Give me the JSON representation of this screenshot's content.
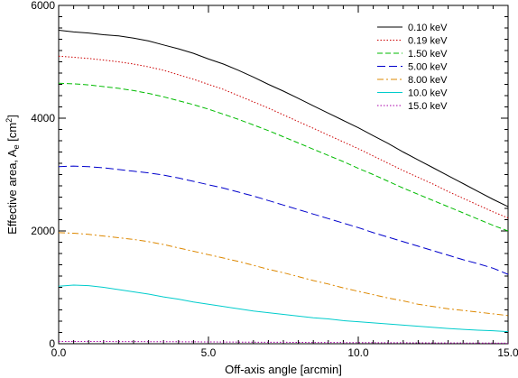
{
  "chart_data": {
    "type": "line",
    "xlabel": "Off-axis angle [arcmin]",
    "ylabel": "Effective area, A",
    "ylabel_sub": "e",
    "ylabel_unit_prefix": " [cm",
    "ylabel_unit_sup": "2",
    "ylabel_unit_suffix": "]",
    "xlim": [
      0,
      15
    ],
    "ylim": [
      0,
      6000
    ],
    "xticks": [
      0,
      5,
      10,
      15
    ],
    "xtick_labels": [
      "0.0",
      "5.0",
      "10.0",
      "15.0"
    ],
    "yticks": [
      0,
      2000,
      4000,
      6000
    ],
    "ytick_labels": [
      "0",
      "2000",
      "4000",
      "6000"
    ],
    "grid": false,
    "legend_position": "top-right",
    "x": [
      0,
      0.5,
      1,
      1.5,
      2,
      2.5,
      3,
      3.5,
      4,
      4.5,
      5,
      5.5,
      6,
      6.5,
      7,
      7.5,
      8,
      8.5,
      9,
      9.5,
      10,
      10.5,
      11,
      11.5,
      12,
      12.5,
      13,
      13.5,
      14,
      14.5,
      15
    ],
    "series": [
      {
        "name": "0.10 keV",
        "color": "#000000",
        "dash": "",
        "values": [
          5560,
          5530,
          5510,
          5480,
          5460,
          5420,
          5370,
          5300,
          5230,
          5150,
          5050,
          4960,
          4850,
          4730,
          4600,
          4480,
          4350,
          4220,
          4090,
          3960,
          3830,
          3690,
          3550,
          3400,
          3260,
          3120,
          2980,
          2840,
          2700,
          2560,
          2430
        ]
      },
      {
        "name": "0.19 keV",
        "color": "#cc0000",
        "dash": "1.5,2",
        "values": [
          5100,
          5080,
          5060,
          5030,
          5000,
          4960,
          4910,
          4850,
          4770,
          4690,
          4600,
          4510,
          4400,
          4290,
          4180,
          4060,
          3940,
          3820,
          3700,
          3580,
          3460,
          3330,
          3200,
          3070,
          2950,
          2830,
          2700,
          2580,
          2460,
          2340,
          2230
        ]
      },
      {
        "name": "1.50 keV",
        "color": "#00bb00",
        "dash": "6,3",
        "values": [
          4620,
          4610,
          4590,
          4560,
          4530,
          4490,
          4440,
          4380,
          4310,
          4240,
          4160,
          4070,
          3980,
          3880,
          3780,
          3670,
          3560,
          3450,
          3340,
          3230,
          3110,
          3000,
          2880,
          2760,
          2650,
          2540,
          2430,
          2320,
          2210,
          2100,
          2000
        ]
      },
      {
        "name": "5.00 keV",
        "color": "#0000cc",
        "dash": "9,4",
        "values": [
          3140,
          3150,
          3140,
          3120,
          3090,
          3060,
          3030,
          2990,
          2940,
          2880,
          2820,
          2760,
          2690,
          2620,
          2540,
          2460,
          2380,
          2300,
          2220,
          2140,
          2060,
          1970,
          1890,
          1810,
          1730,
          1650,
          1570,
          1490,
          1420,
          1340,
          1230
        ]
      },
      {
        "name": "8.00 keV",
        "color": "#dd8800",
        "dash": "7,3,2,3",
        "values": [
          1970,
          1960,
          1940,
          1910,
          1880,
          1850,
          1810,
          1760,
          1700,
          1640,
          1580,
          1520,
          1460,
          1390,
          1320,
          1260,
          1190,
          1120,
          1060,
          990,
          930,
          870,
          810,
          760,
          700,
          660,
          620,
          590,
          560,
          530,
          500
        ]
      },
      {
        "name": "10.0 keV",
        "color": "#00cccc",
        "dash": "",
        "values": [
          1020,
          1040,
          1030,
          1000,
          960,
          920,
          880,
          830,
          790,
          740,
          700,
          660,
          620,
          580,
          550,
          520,
          490,
          460,
          440,
          410,
          390,
          370,
          350,
          330,
          310,
          290,
          270,
          255,
          240,
          230,
          215
        ]
      },
      {
        "name": "15.0 keV",
        "color": "#aa00aa",
        "dash": "1.5,2",
        "values": [
          40,
          40,
          40,
          40,
          39,
          38,
          37,
          36,
          35,
          33,
          32,
          30,
          29,
          28,
          26,
          25,
          24,
          23,
          22,
          21,
          20,
          19,
          18,
          17,
          16,
          15,
          14,
          13,
          12,
          11,
          10
        ]
      }
    ]
  }
}
